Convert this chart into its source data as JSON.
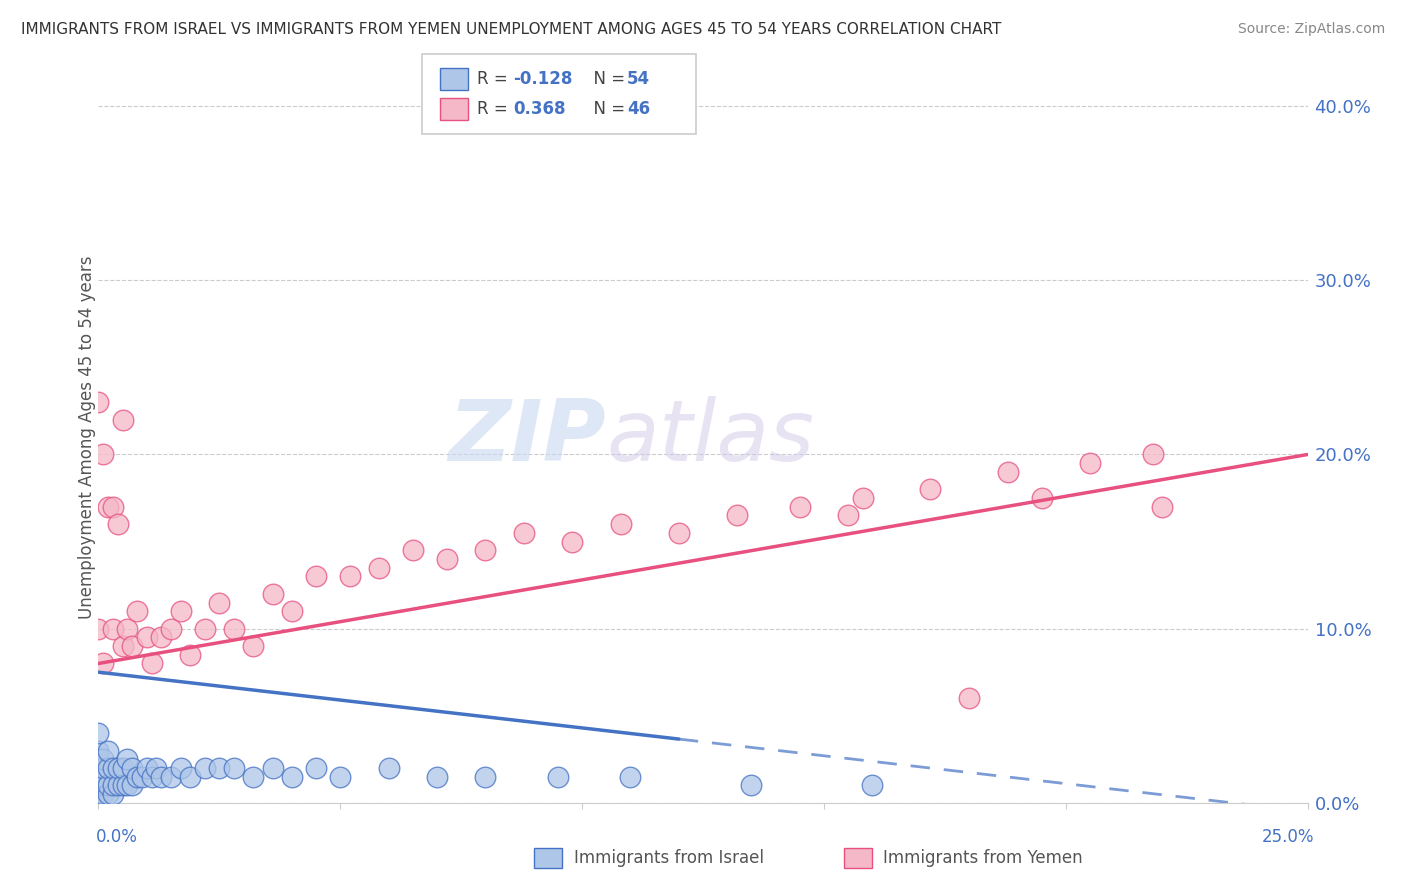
{
  "title": "IMMIGRANTS FROM ISRAEL VS IMMIGRANTS FROM YEMEN UNEMPLOYMENT AMONG AGES 45 TO 54 YEARS CORRELATION CHART",
  "source": "Source: ZipAtlas.com",
  "ylabel": "Unemployment Among Ages 45 to 54 years",
  "israel_R": -0.128,
  "israel_N": 54,
  "yemen_R": 0.368,
  "yemen_N": 46,
  "israel_color": "#aec6e8",
  "israel_edge_color": "#4472c4",
  "yemen_color": "#f4b8c8",
  "yemen_edge_color": "#e85080",
  "background_color": "#ffffff",
  "watermark_zip": "ZIP",
  "watermark_atlas": "atlas",
  "xlim": [
    0,
    0.25
  ],
  "ylim": [
    0,
    0.42
  ],
  "israel_x": [
    0.0,
    0.0,
    0.0,
    0.0,
    0.0,
    0.0,
    0.0,
    0.0,
    0.0,
    0.0,
    0.001,
    0.001,
    0.001,
    0.001,
    0.001,
    0.002,
    0.002,
    0.002,
    0.002,
    0.003,
    0.003,
    0.003,
    0.004,
    0.004,
    0.005,
    0.005,
    0.006,
    0.006,
    0.007,
    0.007,
    0.008,
    0.009,
    0.01,
    0.011,
    0.012,
    0.013,
    0.015,
    0.017,
    0.019,
    0.022,
    0.025,
    0.028,
    0.032,
    0.036,
    0.04,
    0.045,
    0.05,
    0.06,
    0.07,
    0.08,
    0.095,
    0.11,
    0.135,
    0.16
  ],
  "israel_y": [
    0.005,
    0.005,
    0.005,
    0.01,
    0.01,
    0.015,
    0.02,
    0.025,
    0.03,
    0.04,
    0.005,
    0.01,
    0.015,
    0.02,
    0.025,
    0.005,
    0.01,
    0.02,
    0.03,
    0.005,
    0.01,
    0.02,
    0.01,
    0.02,
    0.01,
    0.02,
    0.01,
    0.025,
    0.01,
    0.02,
    0.015,
    0.015,
    0.02,
    0.015,
    0.02,
    0.015,
    0.015,
    0.02,
    0.015,
    0.02,
    0.02,
    0.02,
    0.015,
    0.02,
    0.015,
    0.02,
    0.015,
    0.02,
    0.015,
    0.015,
    0.015,
    0.015,
    0.01,
    0.01
  ],
  "yemen_x": [
    0.0,
    0.0,
    0.001,
    0.001,
    0.002,
    0.003,
    0.003,
    0.004,
    0.005,
    0.005,
    0.006,
    0.007,
    0.008,
    0.01,
    0.011,
    0.013,
    0.015,
    0.017,
    0.019,
    0.022,
    0.025,
    0.028,
    0.032,
    0.036,
    0.04,
    0.045,
    0.052,
    0.058,
    0.065,
    0.072,
    0.08,
    0.088,
    0.098,
    0.108,
    0.12,
    0.132,
    0.145,
    0.158,
    0.172,
    0.188,
    0.205,
    0.218,
    0.22,
    0.195,
    0.18,
    0.155
  ],
  "yemen_y": [
    0.1,
    0.23,
    0.08,
    0.2,
    0.17,
    0.1,
    0.17,
    0.16,
    0.09,
    0.22,
    0.1,
    0.09,
    0.11,
    0.095,
    0.08,
    0.095,
    0.1,
    0.11,
    0.085,
    0.1,
    0.115,
    0.1,
    0.09,
    0.12,
    0.11,
    0.13,
    0.13,
    0.135,
    0.145,
    0.14,
    0.145,
    0.155,
    0.15,
    0.16,
    0.155,
    0.165,
    0.17,
    0.175,
    0.18,
    0.19,
    0.195,
    0.2,
    0.17,
    0.175,
    0.06,
    0.165
  ],
  "israel_line_solid_end": 0.12,
  "israel_line_start_y": 0.075,
  "israel_line_end_y": -0.005,
  "yemen_line_start_y": 0.08,
  "yemen_line_end_y": 0.2
}
